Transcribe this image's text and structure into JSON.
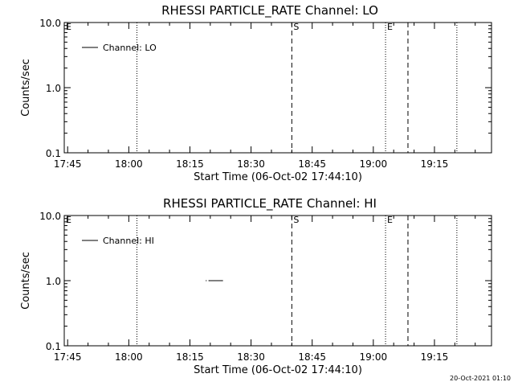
{
  "chart_data": [
    {
      "type": "line",
      "title": "RHESSI PARTICLE_RATE Channel: LO",
      "xlabel": "Start Time (06-Oct-02 17:44:10)",
      "ylabel": "Counts/sec",
      "x_range": [
        "17:44:10",
        "19:29:00"
      ],
      "x_ticks": [
        "17:45",
        "18:00",
        "18:15",
        "18:30",
        "18:45",
        "19:00",
        "19:15"
      ],
      "y_scale": "log",
      "ylim": [
        0.1,
        10.0
      ],
      "y_ticks": [
        "0.1",
        "1.0",
        "10.0"
      ],
      "legend_placement": "top-left",
      "series": [
        {
          "name": "Channel: LO",
          "x": [],
          "y": []
        }
      ],
      "vertical_lines": [
        {
          "time": "18:02:00",
          "style": "dotted",
          "label": ""
        },
        {
          "time": "18:40:00",
          "style": "dashed",
          "label": "S"
        },
        {
          "time": "19:03:00",
          "style": "dotted",
          "label": "E"
        },
        {
          "time": "19:08:30",
          "style": "dashed",
          "label": ""
        },
        {
          "time": "19:20:30",
          "style": "dotted",
          "label": ""
        }
      ],
      "corner_label": "E"
    },
    {
      "type": "line",
      "title": "RHESSI PARTICLE_RATE Channel: HI",
      "xlabel": "Start Time (06-Oct-02 17:44:10)",
      "ylabel": "Counts/sec",
      "x_range": [
        "17:44:10",
        "19:29:00"
      ],
      "x_ticks": [
        "17:45",
        "18:00",
        "18:15",
        "18:30",
        "18:45",
        "19:00",
        "19:15"
      ],
      "y_scale": "log",
      "ylim": [
        0.1,
        10.0
      ],
      "y_ticks": [
        "0.1",
        "1.0",
        "10.0"
      ],
      "legend_placement": "top-left",
      "series": [
        {
          "name": "Channel: HI",
          "x": [
            "18:19:00",
            "18:19:40",
            "18:23:00"
          ],
          "y": [
            1.0,
            1.0,
            1.0
          ]
        }
      ],
      "vertical_lines": [
        {
          "time": "18:02:00",
          "style": "dotted",
          "label": ""
        },
        {
          "time": "18:40:00",
          "style": "dashed",
          "label": "S"
        },
        {
          "time": "19:03:00",
          "style": "dotted",
          "label": "E"
        },
        {
          "time": "19:08:30",
          "style": "dashed",
          "label": ""
        },
        {
          "time": "19:20:30",
          "style": "dotted",
          "label": ""
        }
      ],
      "corner_label": "E"
    }
  ],
  "timestamp": "20-Oct-2021 01:10"
}
